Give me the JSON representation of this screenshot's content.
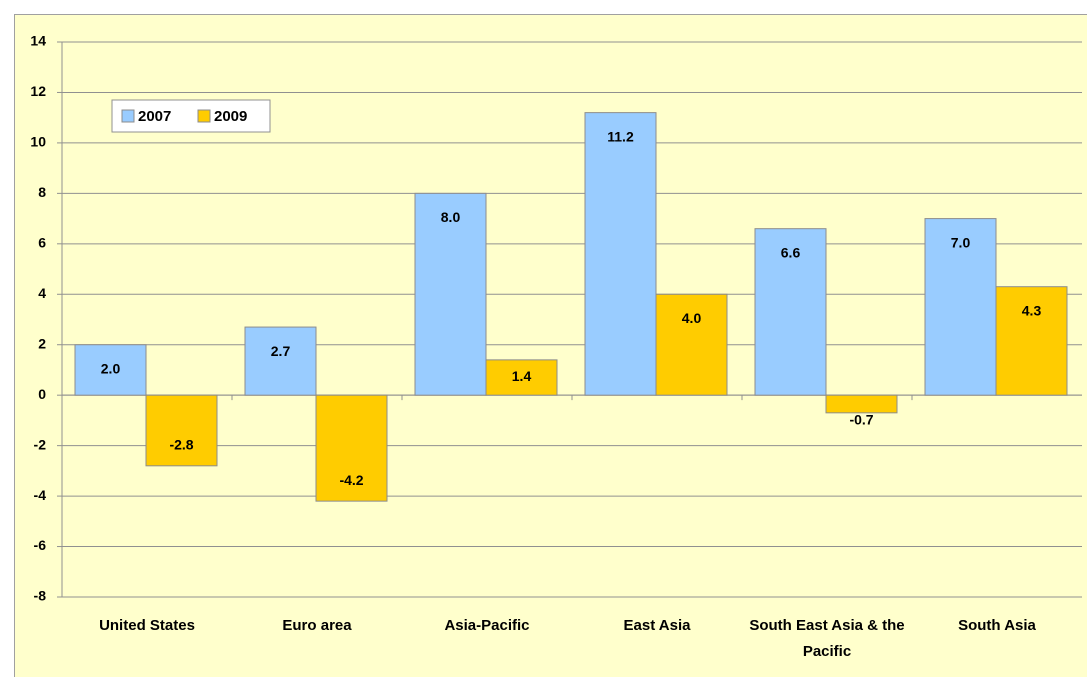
{
  "chart_data": {
    "type": "bar",
    "categories": [
      "United States",
      "Euro area",
      "Asia-Pacific",
      "East Asia",
      "South East Asia & the Pacific",
      "South Asia"
    ],
    "series": [
      {
        "name": "2007",
        "color": "#99ccff",
        "values": [
          2.0,
          2.7,
          8.0,
          11.2,
          6.6,
          7.0
        ],
        "value_labels": [
          "2.0",
          "2.7",
          "8.0",
          "11.2",
          "6.6",
          "7.0"
        ]
      },
      {
        "name": "2009",
        "color": "#ffcc00",
        "values": [
          -2.8,
          -4.2,
          1.4,
          4.0,
          -0.7,
          4.3
        ],
        "value_labels": [
          "-2.8",
          "-4.2",
          "1.4",
          "4.0",
          "-0.7",
          "4.3"
        ]
      }
    ],
    "ylim": [
      -8,
      14
    ],
    "yticks": [
      -8,
      -6,
      -4,
      -2,
      0,
      2,
      4,
      6,
      8,
      10,
      12,
      14
    ],
    "grid": true,
    "legend": "upper left"
  }
}
